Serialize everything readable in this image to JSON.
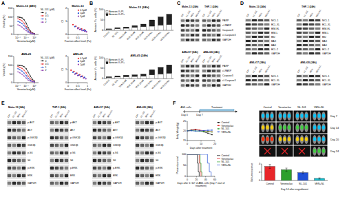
{
  "letters": [
    "A",
    "B",
    "C",
    "D",
    "E",
    "F"
  ],
  "chart_data": [
    {
      "type": "line",
      "title": "Molm-13 (48h)",
      "x_label": "Venetoclax(μM)",
      "y_label": "Viability(%)",
      "log": "x",
      "xlim": [
        1e-05,
        10
      ],
      "xticks": [
        {
          "value": 0.0001,
          "label": "10⁻⁴"
        },
        {
          "value": 0.01,
          "label": "10⁻²"
        },
        {
          "value": 1,
          "label": "10⁰"
        }
      ],
      "ylim": [
        0,
        150
      ],
      "yticks": [
        0,
        50,
        100,
        150
      ],
      "legend": "right",
      "legend_title": "NL-101 (μM)",
      "marker": "circle",
      "x": [
        0.0001,
        0.0003,
        0.001,
        0.003,
        0.01,
        0.03,
        0.1,
        0.3,
        1
      ],
      "series": [
        {
          "name": "0",
          "color": "#000000",
          "values": [
            100,
            98,
            95,
            85,
            65,
            40,
            20,
            10,
            5
          ]
        },
        {
          "name": "0.5",
          "color": "#e8262a",
          "values": [
            90,
            85,
            78,
            65,
            45,
            28,
            15,
            8,
            4
          ]
        },
        {
          "name": "1",
          "color": "#1f4fd6",
          "values": [
            75,
            70,
            62,
            50,
            35,
            20,
            10,
            6,
            3
          ]
        },
        {
          "name": "2",
          "color": "#8e3fb0",
          "values": [
            55,
            50,
            42,
            32,
            22,
            12,
            7,
            4,
            2
          ]
        }
      ]
    },
    {
      "type": "scatter",
      "title": "Molm-13",
      "x_label": "Fraction affect level (Fa)",
      "y_label": "CI",
      "xlim": [
        0,
        1
      ],
      "xticks": [
        0,
        0.5,
        1
      ],
      "ylim": [
        0,
        2
      ],
      "yticks": [
        0,
        1,
        2
      ],
      "legend": "upper right",
      "marker": "circle",
      "series": [
        {
          "name": "0.5μM",
          "color": "#e8262a",
          "x": [
            0.25,
            0.4,
            0.55,
            0.7,
            0.85
          ],
          "values": [
            0.75,
            0.62,
            0.5,
            0.42,
            0.35
          ]
        },
        {
          "name": "1μM",
          "color": "#1f4fd6",
          "x": [
            0.35,
            0.5,
            0.65,
            0.8,
            0.9
          ],
          "values": [
            0.6,
            0.5,
            0.4,
            0.32,
            0.28
          ]
        },
        {
          "name": "2μM",
          "color": "#8e3fb0",
          "x": [
            0.5,
            0.6,
            0.72,
            0.85,
            0.95
          ],
          "values": [
            0.45,
            0.38,
            0.3,
            0.25,
            0.2
          ]
        }
      ]
    },
    {
      "type": "line",
      "title": "AML#5",
      "x_label": "Venetoclax(μM)",
      "y_label": "Viability(%)",
      "log": "x",
      "xlim": [
        1e-05,
        10
      ],
      "xticks": [
        {
          "value": 0.0001,
          "label": "10⁻⁴"
        },
        {
          "value": 0.01,
          "label": "10⁻²"
        },
        {
          "value": 1,
          "label": "10⁰"
        }
      ],
      "ylim": [
        0,
        150
      ],
      "yticks": [
        0,
        50,
        100,
        150
      ],
      "legend": "right",
      "legend_title": "NL-101 (μM)",
      "marker": "circle",
      "x": [
        0.0001,
        0.0003,
        0.001,
        0.003,
        0.01,
        0.03,
        0.1,
        0.3,
        1
      ],
      "series": [
        {
          "name": "0",
          "color": "#000000",
          "values": [
            100,
            99,
            97,
            92,
            80,
            60,
            38,
            20,
            10
          ]
        },
        {
          "name": "0.5",
          "color": "#e8262a",
          "values": [
            92,
            88,
            82,
            72,
            56,
            38,
            22,
            12,
            6
          ]
        },
        {
          "name": "1",
          "color": "#1f4fd6",
          "values": [
            80,
            74,
            66,
            55,
            40,
            25,
            14,
            8,
            4
          ]
        },
        {
          "name": "2",
          "color": "#8e3fb0",
          "values": [
            62,
            56,
            48,
            38,
            26,
            15,
            9,
            5,
            3
          ]
        }
      ]
    },
    {
      "type": "scatter",
      "title": "AML#5",
      "x_label": "Fraction affect level (Fa)",
      "y_label": "CI",
      "xlim": [
        0,
        1
      ],
      "xticks": [
        0,
        0.5,
        1
      ],
      "ylim": [
        0,
        2
      ],
      "yticks": [
        0,
        1,
        2
      ],
      "legend": "upper right",
      "marker": "circle",
      "series": [
        {
          "name": "0.5μM",
          "color": "#e8262a",
          "x": [
            0.15,
            0.3,
            0.45,
            0.6,
            0.75
          ],
          "values": [
            0.95,
            0.85,
            0.72,
            0.6,
            0.5
          ]
        },
        {
          "name": "1μM",
          "color": "#1f4fd6",
          "x": [
            0.25,
            0.4,
            0.55,
            0.7,
            0.85
          ],
          "values": [
            0.8,
            0.7,
            0.58,
            0.48,
            0.4
          ]
        },
        {
          "name": "2μM",
          "color": "#8e3fb0",
          "x": [
            0.35,
            0.5,
            0.65,
            0.8,
            0.92
          ],
          "values": [
            0.65,
            0.55,
            0.45,
            0.36,
            0.3
          ]
        }
      ]
    },
    {
      "type": "bar",
      "title": "Molm-13 (24h)",
      "y_label": "Annexin V+ cells (%)",
      "stacked": true,
      "legend": "upper left",
      "ylim": [
        0,
        100
      ],
      "yticks": [
        0,
        50,
        100
      ],
      "categories": [
        "Control",
        "NL-101",
        "VEN 5nM",
        "VEN 10nM",
        "VEN 20nM",
        "VEN 5+NL",
        "VEN 10+NL",
        "VEN 20+NL"
      ],
      "series": [
        {
          "name": "Annexin V+PI-",
          "color": "#ffffff",
          "values": [
            4,
            8,
            10,
            14,
            18,
            20,
            25,
            28
          ]
        },
        {
          "name": "Annexin V+PI+",
          "color": "#222222",
          "values": [
            3,
            5,
            6,
            9,
            12,
            30,
            40,
            50
          ]
        }
      ]
    },
    {
      "type": "bar",
      "title": "AML#5 (24h)",
      "y_label": "Annexin V+ cells (%)",
      "stacked": true,
      "legend": "upper left",
      "ylim": [
        0,
        100
      ],
      "yticks": [
        0,
        50,
        100
      ],
      "categories": [
        "Control",
        "NL-101",
        "VEN 5nM",
        "VEN 10nM",
        "VEN 20nM",
        "VEN 5+NL",
        "VEN 10+NL",
        "VEN 20+NL"
      ],
      "series": [
        {
          "name": "Annexin V+PI-",
          "color": "#ffffff",
          "values": [
            5,
            7,
            9,
            10,
            12,
            18,
            22,
            26
          ]
        },
        {
          "name": "Annexin V+PI+",
          "color": "#222222",
          "values": [
            4,
            6,
            7,
            8,
            10,
            25,
            32,
            40
          ]
        }
      ]
    },
    {
      "type": "line",
      "x_label": "Days after treatment",
      "y_label": "Body Weight(g)",
      "xlim": [
        0,
        20
      ],
      "xticks": [
        0,
        10,
        20
      ],
      "ylim": [
        15,
        25
      ],
      "yticks": [
        15,
        20,
        25
      ],
      "legend": "right",
      "marker": "circle",
      "x": [
        0,
        3,
        6,
        9,
        12,
        15,
        18
      ],
      "series": [
        {
          "name": "Control",
          "color": "#000000",
          "values": [
            20,
            20.5,
            20.8,
            20.2,
            19.5,
            18.8,
            18
          ]
        },
        {
          "name": "Venetoclax",
          "color": "#e8262a",
          "values": [
            20,
            20.3,
            20.6,
            20.4,
            20.1,
            19.8,
            19.5
          ]
        },
        {
          "name": "NL-101",
          "color": "#2ca02c",
          "values": [
            20,
            20.2,
            20,
            19.8,
            19.7,
            19.6,
            19.4
          ]
        },
        {
          "name": "VEN+NL",
          "color": "#1f4fd6",
          "values": [
            20,
            20.1,
            19.9,
            20,
            20.2,
            20.3,
            20.4
          ]
        }
      ]
    },
    {
      "type": "line",
      "line_style": "step",
      "x_label": "Days after 1×10⁶ of AML cells (Day 7 start of treatment)",
      "y_label": "Percent survival",
      "xlim": [
        0,
        60
      ],
      "xticks": [
        0,
        20,
        40,
        60
      ],
      "ylim": [
        0,
        100
      ],
      "yticks": [
        0,
        50,
        100
      ],
      "legend": "right",
      "series": [
        {
          "name": "Control",
          "color": "#000000",
          "x": [
            0,
            20,
            22,
            24,
            26
          ],
          "values": [
            100,
            100,
            60,
            20,
            0
          ]
        },
        {
          "name": "Venetoclax",
          "color": "#e8262a",
          "x": [
            0,
            24,
            26,
            28,
            30
          ],
          "values": [
            100,
            100,
            60,
            20,
            0
          ]
        },
        {
          "name": "NL-101",
          "color": "#2ca02c",
          "x": [
            0,
            26,
            28,
            30,
            32
          ],
          "values": [
            100,
            100,
            60,
            20,
            0
          ]
        },
        {
          "name": "VEN+NL",
          "color": "#1f4fd6",
          "x": [
            0,
            40,
            44,
            48,
            52
          ],
          "values": [
            100,
            100,
            60,
            20,
            0
          ]
        }
      ]
    },
    {
      "type": "bar",
      "x_label": "Day 14 after engraftment",
      "y_label": "Bioluminescence",
      "ylim": [
        0,
        4
      ],
      "yticks": [
        0,
        2,
        4
      ],
      "categories": [
        "Control",
        "Venetoclax",
        "NL-101",
        "VEN+NL"
      ],
      "values": [
        3.4,
        2.6,
        1.9,
        0.5
      ],
      "errors": [
        0.5,
        0.4,
        0.3,
        0.15
      ],
      "colors": [
        "#e8262a",
        "#2ca02c",
        "#1f4fd6",
        "#17becf"
      ]
    }
  ],
  "lanes": [
    "Ctrl",
    "NL-101",
    "VEN",
    "VEN+NL"
  ],
  "blot_panels": [
    {
      "pairs": [
        {
          "titles": [
            "Molm-13 (24h)",
            "THP-1 (24h)"
          ],
          "rows": [
            "PARP",
            "cl-PARP",
            "Caspase3",
            "cl-Caspase3",
            "GAPDH"
          ]
        },
        {
          "titles": [
            "AML#17 (24h)",
            "AML#20 (24h)"
          ],
          "rows": [
            "PARP",
            "cl-PARP",
            "Caspase3",
            "cl-Caspase3",
            "GAPDH"
          ]
        }
      ]
    },
    {
      "pairs": [
        {
          "titles": [
            "Molm-13 (24h)",
            "THP-1 (24h)"
          ],
          "rows": [
            "MCL-1",
            "BCL-XL",
            "BIM-EL",
            "BIM-L",
            "BID",
            "BAX",
            "BAK",
            "BCL-2",
            "GAPDH"
          ]
        },
        {
          "titles": [
            "AML#17 (24h)",
            "AML#20 (24h)"
          ],
          "rows": [
            "MCL-1",
            "BCL-XL",
            "GAPDH"
          ]
        }
      ]
    },
    {
      "pairs": [
        {
          "titles": [
            "Molm-13 (24h)",
            "THP-1 (24h)"
          ],
          "rows": [
            "p-AKT",
            "AKT",
            "p-GSK3β",
            "GSK3β",
            "p-S6",
            "S6",
            "p-ERK",
            "ERK",
            "GAPDH"
          ]
        },
        {
          "titles": [
            "AML#17 (24h)",
            "AML#20 (24h)"
          ],
          "rows": [
            "p-AKT",
            "AKT",
            "p-GSK3β",
            "GSK3β",
            "p-S6",
            "S6",
            "p-ERK",
            "ERK",
            "GAPDH"
          ]
        }
      ]
    }
  ],
  "schema": {
    "texts": [
      "AML cells",
      "Day 0",
      "Day 7",
      "Treatment"
    ]
  },
  "imaging": {
    "columns": [
      "Control",
      "Venetoclax",
      "NL-101",
      "VEN+NL"
    ],
    "signal_range": [
      0,
      4
    ],
    "rows": [
      {
        "label": "Day 7",
        "signal": [
          1,
          1,
          1,
          1
        ],
        "alive": [
          true,
          true,
          true,
          true
        ]
      },
      {
        "label": "Day 14",
        "signal": [
          3,
          2,
          2,
          1
        ],
        "alive": [
          true,
          true,
          true,
          true
        ]
      },
      {
        "label": "Day 20",
        "signal": [
          4,
          3,
          3,
          1
        ],
        "alive": [
          true,
          true,
          true,
          true
        ]
      },
      {
        "label": "Day 24",
        "signal": [
          null,
          null,
          null,
          2
        ],
        "alive": [
          false,
          false,
          false,
          true
        ]
      }
    ]
  }
}
